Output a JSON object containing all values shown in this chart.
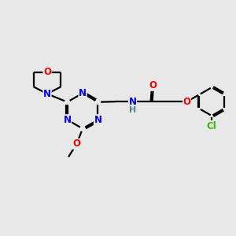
{
  "background_color": "#e8e8e8",
  "bond_color": "#000000",
  "N_color": "#0000ee",
  "O_color": "#ee0000",
  "Cl_color": "#33bb00",
  "H_color": "#4d8888",
  "line_width": 1.6,
  "font_size": 8.5,
  "fig_size": [
    3.0,
    3.0
  ],
  "dpi": 100,
  "xlim": [
    0,
    10
  ],
  "ylim": [
    0,
    10
  ]
}
